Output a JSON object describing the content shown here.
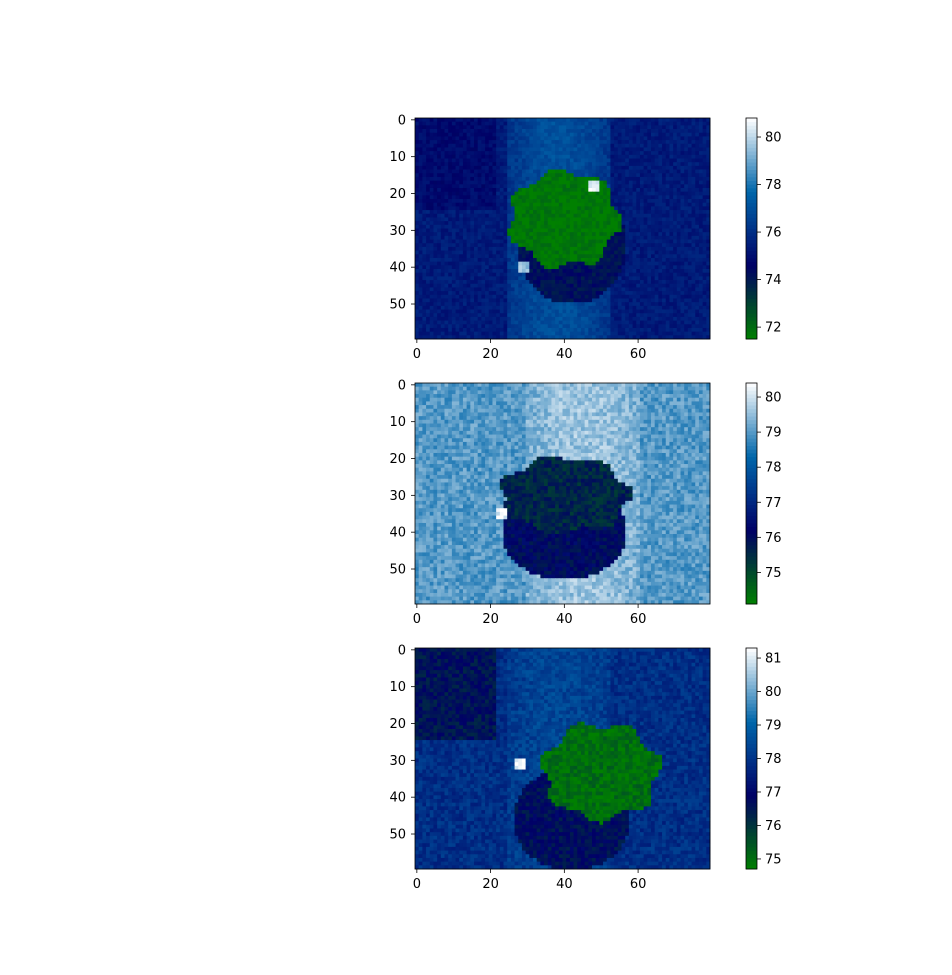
{
  "chart_data": [
    {
      "type": "heatmap",
      "title": "",
      "xlabel": "",
      "ylabel": "",
      "grid_cols": 80,
      "grid_rows": 60,
      "x_ticks": [
        0,
        20,
        40,
        60
      ],
      "y_ticks": [
        0,
        10,
        20,
        30,
        40,
        50
      ],
      "colormap": [
        "#008000",
        "#000066",
        "#0066aa",
        "#ffffff"
      ],
      "colorbar": {
        "min": 71.5,
        "max": 80.8,
        "ticks": [
          72,
          74,
          76,
          78,
          80
        ]
      },
      "regions": {
        "background": 75.4,
        "left_band_top": 74.9,
        "bright_band": 77.0,
        "bright_band_x": [
          25,
          52
        ],
        "plant": 71.7,
        "pot": 74.2,
        "pot_center": [
          42,
          34
        ],
        "pot_radius": [
          15,
          16
        ],
        "plant_center": [
          40,
          27
        ],
        "plant_radius": [
          16,
          14
        ],
        "hotspots": [
          [
            48,
            18,
            80.5
          ],
          [
            29,
            40,
            79.5
          ]
        ]
      }
    },
    {
      "type": "heatmap",
      "title": "",
      "xlabel": "",
      "ylabel": "",
      "grid_cols": 80,
      "grid_rows": 60,
      "x_ticks": [
        0,
        20,
        40,
        60
      ],
      "y_ticks": [
        0,
        10,
        20,
        30,
        40,
        50
      ],
      "colormap": [
        "#008000",
        "#000066",
        "#0066aa",
        "#ffffff"
      ],
      "colorbar": {
        "min": 74.1,
        "max": 80.4,
        "ticks": [
          75,
          76,
          77,
          78,
          79,
          80
        ]
      },
      "regions": {
        "background": 79.0,
        "bright_band": 79.6,
        "bright_band_x": [
          30,
          60
        ],
        "plant": 75.6,
        "pot": 76.1,
        "pot_center": [
          40,
          40
        ],
        "pot_radius": [
          17,
          13
        ],
        "plant_center": [
          40,
          30
        ],
        "plant_radius": [
          19,
          11
        ],
        "hotspots": [
          [
            23,
            35,
            80.2
          ]
        ]
      }
    },
    {
      "type": "heatmap",
      "title": "",
      "xlabel": "",
      "ylabel": "",
      "grid_cols": 80,
      "grid_rows": 60,
      "x_ticks": [
        0,
        20,
        40,
        60
      ],
      "y_ticks": [
        0,
        10,
        20,
        30,
        40,
        50
      ],
      "colormap": [
        "#008000",
        "#000066",
        "#0066aa",
        "#ffffff"
      ],
      "colorbar": {
        "min": 74.7,
        "max": 81.3,
        "ticks": [
          75,
          76,
          77,
          78,
          79,
          80,
          81
        ]
      },
      "regions": {
        "background": 77.9,
        "left_band_top": 76.6,
        "bright_band": 78.4,
        "bright_band_x": [
          25,
          52
        ],
        "plant": 75.0,
        "pot": 76.7,
        "pot_center": [
          42,
          46
        ],
        "pot_radius": [
          16,
          14
        ],
        "plant_center": [
          50,
          33
        ],
        "plant_radius": [
          17,
          14
        ],
        "hotspots": [
          [
            28,
            31,
            81.2
          ]
        ]
      }
    }
  ]
}
